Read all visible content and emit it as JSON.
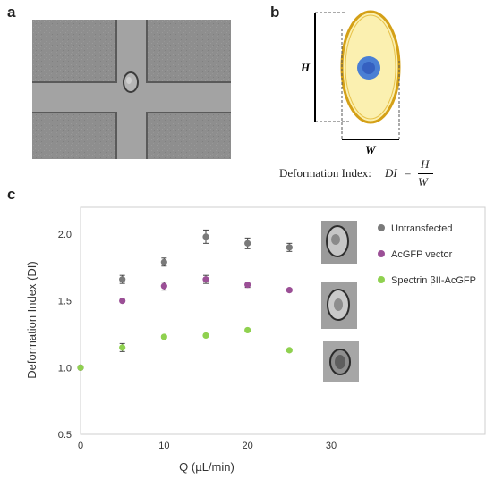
{
  "panels": {
    "a": "a",
    "b": "b",
    "c": "c"
  },
  "diagram": {
    "h_label": "H",
    "w_label": "W",
    "equation_prefix": "Deformation Index:",
    "equation_lhs": "DI",
    "equation_eq": "=",
    "equation_num": "H",
    "equation_den": "W"
  },
  "colors": {
    "untransfected": "#7a7a7a",
    "acgfp": "#9b4f96",
    "spectrin": "#8fd14f",
    "cell_fill": "#fbf0b0",
    "cell_border": "#d4a017",
    "nucleus": "#4a7fd4"
  },
  "chart_data": {
    "type": "scatter",
    "xlabel": "Q (µL/min)",
    "ylabel": "Deformation Index (DI)",
    "xlim": [
      0,
      35
    ],
    "ylim": [
      0.5,
      2.2
    ],
    "xticks": [
      0,
      10,
      20,
      30
    ],
    "yticks": [
      0.5,
      1.0,
      1.5,
      2.0
    ],
    "legend_position": "right",
    "series": [
      {
        "name": "Untransfected",
        "color": "#7a7a7a",
        "x": [
          0,
          5,
          10,
          15,
          20,
          25
        ],
        "y": [
          1.0,
          1.66,
          1.79,
          1.98,
          1.93,
          1.9
        ],
        "err": [
          0,
          0.03,
          0.03,
          0.05,
          0.04,
          0.03
        ]
      },
      {
        "name": "AcGFP vector",
        "color": "#9b4f96",
        "x": [
          0,
          5,
          10,
          15,
          20,
          25
        ],
        "y": [
          1.0,
          1.5,
          1.61,
          1.66,
          1.62,
          1.58
        ],
        "err": [
          0,
          0.01,
          0.03,
          0.03,
          0.02,
          0.01
        ]
      },
      {
        "name": "Spectrin βII-AcGFP",
        "color": "#8fd14f",
        "x": [
          0,
          5,
          10,
          15,
          20,
          25
        ],
        "y": [
          1.0,
          1.15,
          1.23,
          1.24,
          1.28,
          1.13
        ],
        "err": [
          0,
          0.03,
          0.01,
          0.01,
          0.01,
          0.01
        ]
      }
    ]
  }
}
